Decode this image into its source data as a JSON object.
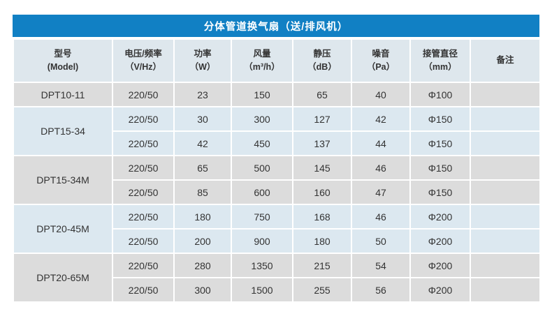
{
  "title": "分体管道换气扇（送/排风机）",
  "table": {
    "columns": [
      {
        "label": "型号",
        "unit": "(Model)"
      },
      {
        "label": "电压/频率",
        "unit": "（V/Hz）"
      },
      {
        "label": "功率",
        "unit": "（W）"
      },
      {
        "label": "风量",
        "unit": "（m³/h）"
      },
      {
        "label": "静压",
        "unit": "（dB）"
      },
      {
        "label": "噪音",
        "unit": "（Pa）"
      },
      {
        "label": "接管直径",
        "unit": "（mm）"
      },
      {
        "label": "备注",
        "unit": ""
      }
    ],
    "groups": [
      {
        "model": "DPT10-11",
        "rows": [
          [
            "220/50",
            "23",
            "150",
            "65",
            "40",
            "Φ100",
            ""
          ]
        ]
      },
      {
        "model": "DPT15-34",
        "rows": [
          [
            "220/50",
            "30",
            "300",
            "127",
            "42",
            "Φ150",
            ""
          ],
          [
            "220/50",
            "42",
            "450",
            "137",
            "44",
            "Φ150",
            ""
          ]
        ]
      },
      {
        "model": "DPT15-34M",
        "rows": [
          [
            "220/50",
            "65",
            "500",
            "145",
            "46",
            "Φ150",
            ""
          ],
          [
            "220/50",
            "85",
            "600",
            "160",
            "47",
            "Φ150",
            ""
          ]
        ]
      },
      {
        "model": "DPT20-45M",
        "rows": [
          [
            "220/50",
            "180",
            "750",
            "168",
            "46",
            "Φ200",
            ""
          ],
          [
            "220/50",
            "200",
            "900",
            "180",
            "50",
            "Φ200",
            ""
          ]
        ]
      },
      {
        "model": "DPT20-65M",
        "rows": [
          [
            "220/50",
            "280",
            "1350",
            "215",
            "54",
            "Φ200",
            ""
          ],
          [
            "220/50",
            "300",
            "1500",
            "255",
            "56",
            "Φ200",
            ""
          ]
        ]
      }
    ]
  },
  "colors": {
    "title_bar": "#1180c4",
    "header_bg": "#dee7ed",
    "row_gray": "#dcdcdc",
    "row_blue": "#dce8f0",
    "text": "#333333"
  }
}
